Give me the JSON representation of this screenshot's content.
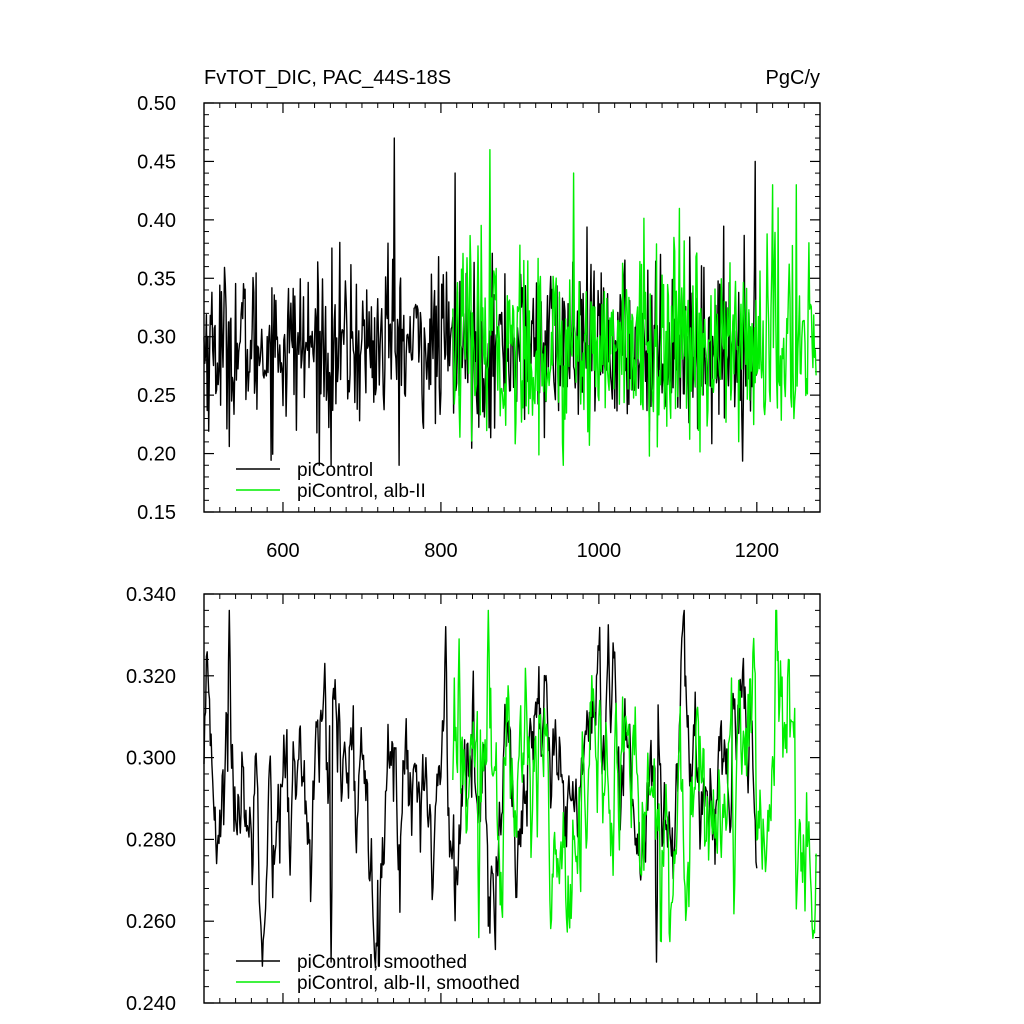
{
  "chart_data": [
    {
      "type": "line",
      "title": "FvTOT_DIC, PAC_44S-18S",
      "units": "PgC/y",
      "xlim": [
        500,
        1280
      ],
      "ylim": [
        0.15,
        0.5
      ],
      "xticks": [
        600,
        800,
        1000,
        1200
      ],
      "yticks": [
        0.15,
        0.2,
        0.25,
        0.3,
        0.35,
        0.4,
        0.45,
        0.5
      ],
      "ytick_labels": [
        "0.15",
        "0.20",
        "0.25",
        "0.30",
        "0.35",
        "0.40",
        "0.45",
        "0.50"
      ],
      "xtick_labels": [
        "600",
        "800",
        "1000",
        "1200"
      ],
      "legend_placement": "bottom-left",
      "series": [
        {
          "name": "piControl",
          "color": "#000000",
          "x_start": 500,
          "x_end": 1200,
          "mean": 0.292,
          "sd": 0.038,
          "min": 0.19,
          "max": 0.47,
          "peaks": [
            [
              741,
              0.47
            ],
            [
              818,
              0.44
            ],
            [
              1198,
              0.45
            ],
            [
              733,
              0.38
            ],
            [
              661,
              0.19
            ]
          ]
        },
        {
          "name": "piControl, alb-II",
          "color": "#00ee00",
          "x_start": 815,
          "x_end": 1275,
          "mean": 0.292,
          "sd": 0.045,
          "min": 0.19,
          "max": 0.46,
          "peaks": [
            [
              862,
              0.46
            ],
            [
              968,
              0.44
            ],
            [
              1220,
              0.43
            ],
            [
              1250,
              0.43
            ],
            [
              955,
              0.19
            ]
          ]
        }
      ]
    },
    {
      "type": "line",
      "title": "",
      "xlim": [
        500,
        1280
      ],
      "ylim": [
        0.24,
        0.34
      ],
      "xticks": [
        600,
        800,
        1000,
        1200
      ],
      "yticks": [
        0.24,
        0.26,
        0.28,
        0.3,
        0.32,
        0.34
      ],
      "ytick_labels": [
        "0.240",
        "0.260",
        "0.280",
        "0.300",
        "0.320",
        "0.340"
      ],
      "legend_placement": "bottom-left",
      "series": [
        {
          "name": "piControl, smoothed",
          "color": "#000000",
          "x_start": 500,
          "x_end": 1200,
          "mean": 0.293,
          "sd": 0.012,
          "min": 0.249,
          "max": 0.336,
          "peaks": [
            [
              532,
              0.336
            ],
            [
              806,
              0.332
            ],
            [
              661,
              0.25
            ],
            [
              1073,
              0.25
            ],
            [
              653,
              0.323
            ]
          ]
        },
        {
          "name": "piControl, alb-II, smoothed",
          "color": "#00ee00",
          "x_start": 815,
          "x_end": 1275,
          "mean": 0.292,
          "sd": 0.014,
          "min": 0.255,
          "max": 0.336,
          "peaks": [
            [
              860,
              0.336
            ],
            [
              848,
              0.256
            ],
            [
              1240,
              0.324
            ],
            [
              1250,
              0.263
            ],
            [
              823,
              0.329
            ]
          ]
        }
      ]
    }
  ]
}
